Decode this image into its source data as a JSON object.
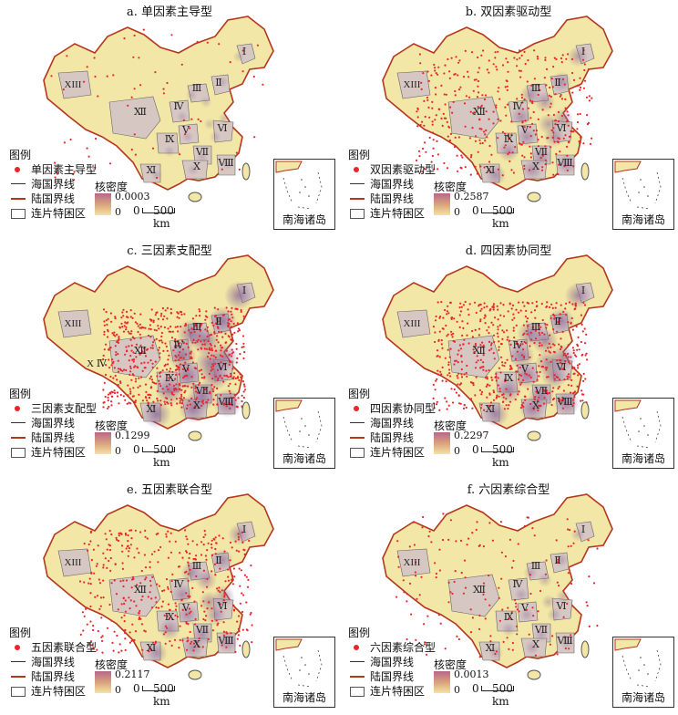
{
  "legend": {
    "heading": "图例",
    "sea_boundary": "海国界线",
    "land_boundary": "陆国界线",
    "poverty_area": "连片特困区",
    "density_label": "核密度",
    "min": "0",
    "scale_zero": "0",
    "scale_dist": "500 km",
    "inset_title": "南海诸岛"
  },
  "colors": {
    "land": "#f2e7a6",
    "poverty": "#d6c7c3",
    "hotspot": "#8e6a98",
    "dot": "#e8262b",
    "land_border": "#b5361c"
  },
  "panels": [
    {
      "title": "a. 单因素主导型",
      "type": "单因素主导型",
      "density_max": "0.0003",
      "intensity": 0.05,
      "regions": [
        "Ⅰ",
        "Ⅱ",
        "Ⅲ",
        "Ⅳ",
        "Ⅴ",
        "Ⅵ",
        "Ⅶ",
        "Ⅷ",
        "Ⅸ",
        "Ⅹ",
        "Ⅺ",
        "Ⅻ",
        "XIII"
      ]
    },
    {
      "title": "b. 双因素驱动型",
      "type": "双因素驱动型",
      "density_max": "0.2587",
      "intensity": 0.55,
      "regions": [
        "Ⅰ",
        "Ⅱ",
        "Ⅲ",
        "Ⅳ",
        "Ⅴ",
        "Ⅵ",
        "Ⅶ",
        "Ⅷ",
        "Ⅸ",
        "Ⅹ",
        "Ⅺ",
        "Ⅻ",
        "XIII"
      ]
    },
    {
      "title": "c. 三因素支配型",
      "type": "三因素支配型",
      "density_max": "0.1299",
      "intensity": 1.0,
      "regions": [
        "Ⅰ",
        "Ⅱ",
        "Ⅲ",
        "Ⅳ",
        "Ⅴ",
        "Ⅵ",
        "Ⅶ",
        "Ⅷ",
        "Ⅸ",
        "Ⅹ",
        "Ⅺ",
        "Ⅻ",
        "XIII",
        "X Ⅳ"
      ]
    },
    {
      "title": "d. 四因素协同型",
      "type": "四因素协同型",
      "density_max": "0.2297",
      "intensity": 0.85,
      "regions": [
        "Ⅰ",
        "Ⅱ",
        "Ⅲ",
        "Ⅳ",
        "Ⅴ",
        "Ⅵ",
        "Ⅶ",
        "Ⅷ",
        "Ⅸ",
        "Ⅹ",
        "Ⅺ",
        "Ⅻ",
        "XIII"
      ]
    },
    {
      "title": "e. 五因素联合型",
      "type": "五因素联合型",
      "density_max": "0.2117",
      "intensity": 0.6,
      "regions": [
        "Ⅰ",
        "Ⅱ",
        "Ⅲ",
        "Ⅳ",
        "Ⅴ",
        "Ⅵ",
        "Ⅶ",
        "Ⅷ",
        "Ⅸ",
        "Ⅹ",
        "Ⅺ",
        "Ⅻ",
        "XIII"
      ]
    },
    {
      "title": "f. 六因素综合型",
      "type": "六因素综合型",
      "density_max": "0.0013",
      "intensity": 0.2,
      "regions": [
        "Ⅰ",
        "Ⅱ",
        "Ⅲ",
        "Ⅳ",
        "Ⅴ",
        "Ⅵ",
        "Ⅶ",
        "Ⅷ",
        "Ⅸ",
        "Ⅹ",
        "Ⅺ",
        "Ⅻ",
        "XIII"
      ]
    }
  ]
}
